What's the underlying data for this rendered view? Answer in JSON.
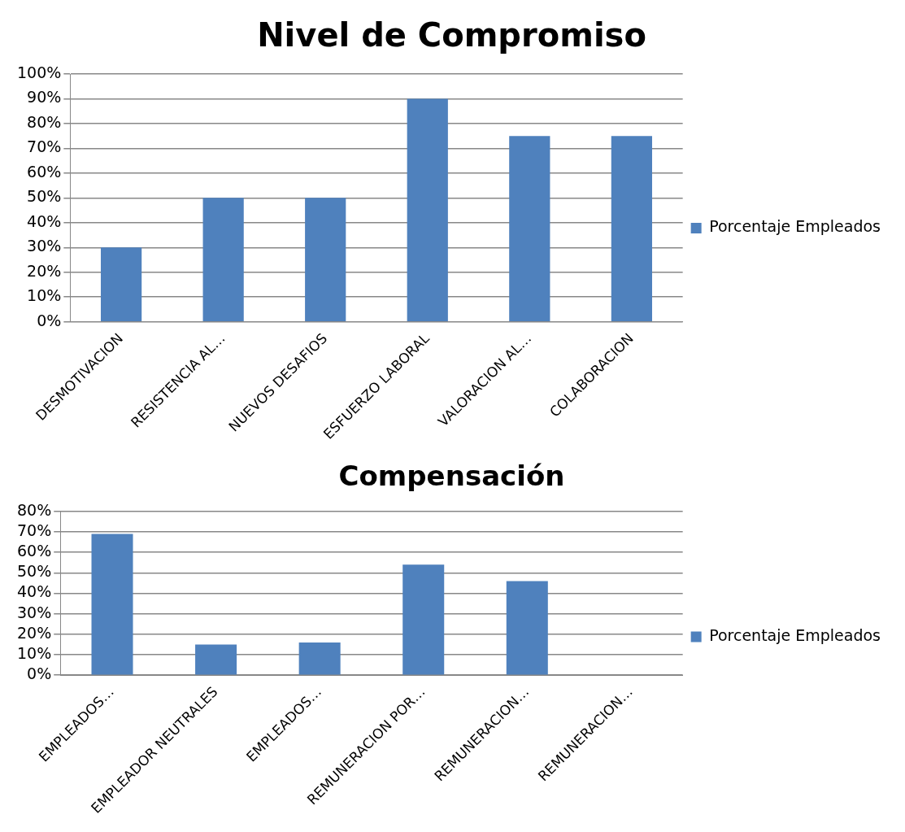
{
  "chart_data": [
    {
      "type": "bar",
      "title": "Nivel de Compromiso",
      "categories": [
        "DESMOTIVACION",
        "RESISTENCIA AL…",
        "NUEVOS DESAFIOS",
        "ESFUERZO LABORAL",
        "VALORACION AL…",
        "COLABORACION"
      ],
      "series": [
        {
          "name": "Porcentaje Empleados",
          "color": "#4f81bd",
          "values": [
            30,
            50,
            50,
            90,
            75,
            75
          ]
        }
      ],
      "ylim": [
        0,
        100
      ],
      "yticks": [
        {
          "value": 0,
          "label": "0%"
        },
        {
          "value": 10,
          "label": "10%"
        },
        {
          "value": 20,
          "label": "20%"
        },
        {
          "value": 30,
          "label": "30%"
        },
        {
          "value": 40,
          "label": "40%"
        },
        {
          "value": 50,
          "label": "50%"
        },
        {
          "value": 60,
          "label": "60%"
        },
        {
          "value": 70,
          "label": "70%"
        },
        {
          "value": 80,
          "label": "80%"
        },
        {
          "value": 90,
          "label": "90%"
        },
        {
          "value": 100,
          "label": "100%"
        }
      ],
      "grid": "y",
      "legend": "right"
    },
    {
      "type": "bar",
      "title": "Compensación",
      "categories": [
        "EMPLEADOS…",
        "EMPLEADOR NEUTRALES",
        "EMPLEADOS…",
        "REMUNERACION POR…",
        "REMUNERACION…",
        "REMUNERACION…"
      ],
      "series": [
        {
          "name": "Porcentaje Empleados",
          "color": "#4f81bd",
          "values": [
            69,
            15,
            16,
            54,
            46,
            0
          ]
        }
      ],
      "ylim": [
        0,
        80
      ],
      "yticks": [
        {
          "value": 0,
          "label": "0%"
        },
        {
          "value": 10,
          "label": "10%"
        },
        {
          "value": 20,
          "label": "20%"
        },
        {
          "value": 30,
          "label": "30%"
        },
        {
          "value": 40,
          "label": "40%"
        },
        {
          "value": 50,
          "label": "50%"
        },
        {
          "value": 60,
          "label": "60%"
        },
        {
          "value": 70,
          "label": "70%"
        },
        {
          "value": 80,
          "label": "80%"
        }
      ],
      "grid": "y",
      "legend": "right"
    }
  ]
}
